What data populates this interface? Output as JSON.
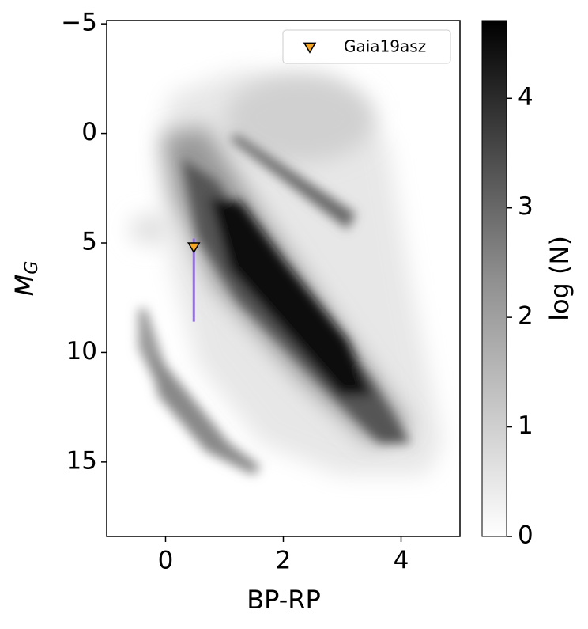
{
  "chart_data": {
    "type": "scatter",
    "xlabel": "BP-RP",
    "ylabel": "M_G",
    "xlim": [
      -1,
      5
    ],
    "xticks": [
      0,
      2,
      4
    ],
    "ylim": [
      18.4,
      -5.15
    ],
    "yticks": [
      {
        "value": -5,
        "label": "−5"
      },
      0,
      5,
      10,
      15
    ],
    "series": [
      {
        "name": "Gaia19asz",
        "color": "#f5a623",
        "edgecolor": "#000000",
        "errorcolor": "#9370db",
        "marker": "v",
        "x": [
          0.48
        ],
        "values": [
          5.2
        ],
        "yerr_minus": [
          0.4
        ],
        "yerr_plus": [
          3.4
        ]
      }
    ],
    "legend": "upper right",
    "colorbar": {
      "label": "log (N)",
      "lim": [
        0,
        4.71
      ],
      "ticks": [
        0,
        1,
        2,
        3,
        4
      ],
      "cmap": "Greys"
    }
  }
}
